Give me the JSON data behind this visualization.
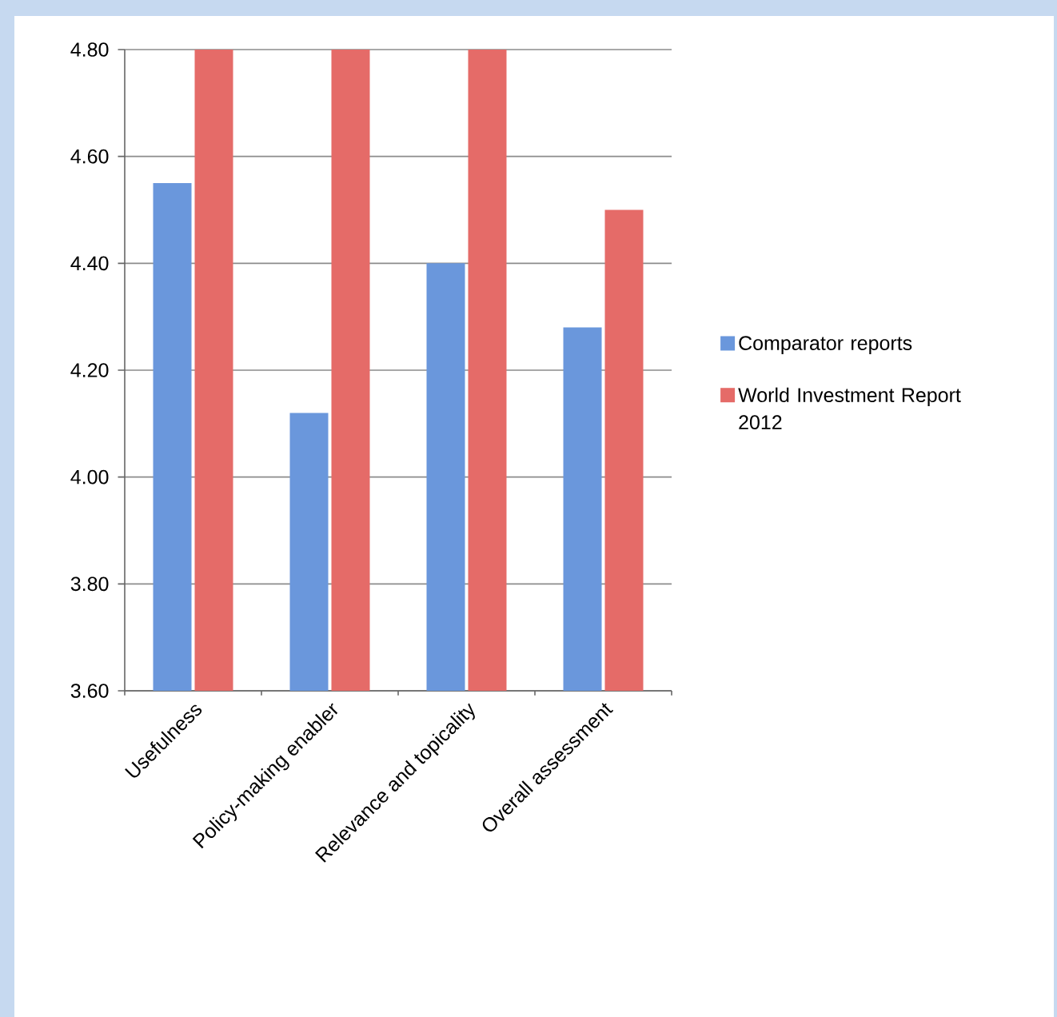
{
  "chart_data": {
    "type": "bar",
    "categories": [
      "Usefulness",
      "Policy-making enabler",
      "Relevance and topicality",
      "Overall assessment"
    ],
    "series": [
      {
        "name": "Comparator reports",
        "color": "#6a97dc",
        "values": [
          4.55,
          4.12,
          4.4,
          4.28
        ]
      },
      {
        "name": "World Investment Report 2012",
        "color": "#e56b68",
        "values": [
          4.8,
          4.8,
          4.8,
          4.5
        ]
      }
    ],
    "ylim": [
      3.6,
      4.8
    ],
    "yticks": [
      {
        "value": 3.6,
        "label": "3.60"
      },
      {
        "value": 3.8,
        "label": "3.80"
      },
      {
        "value": 4.0,
        "label": "4.00"
      },
      {
        "value": 4.2,
        "label": "4.20"
      },
      {
        "value": 4.4,
        "label": "4.40"
      },
      {
        "value": 4.6,
        "label": "4.60"
      },
      {
        "value": 4.8,
        "label": "4.80"
      }
    ],
    "grid": "y",
    "legend": "right"
  }
}
